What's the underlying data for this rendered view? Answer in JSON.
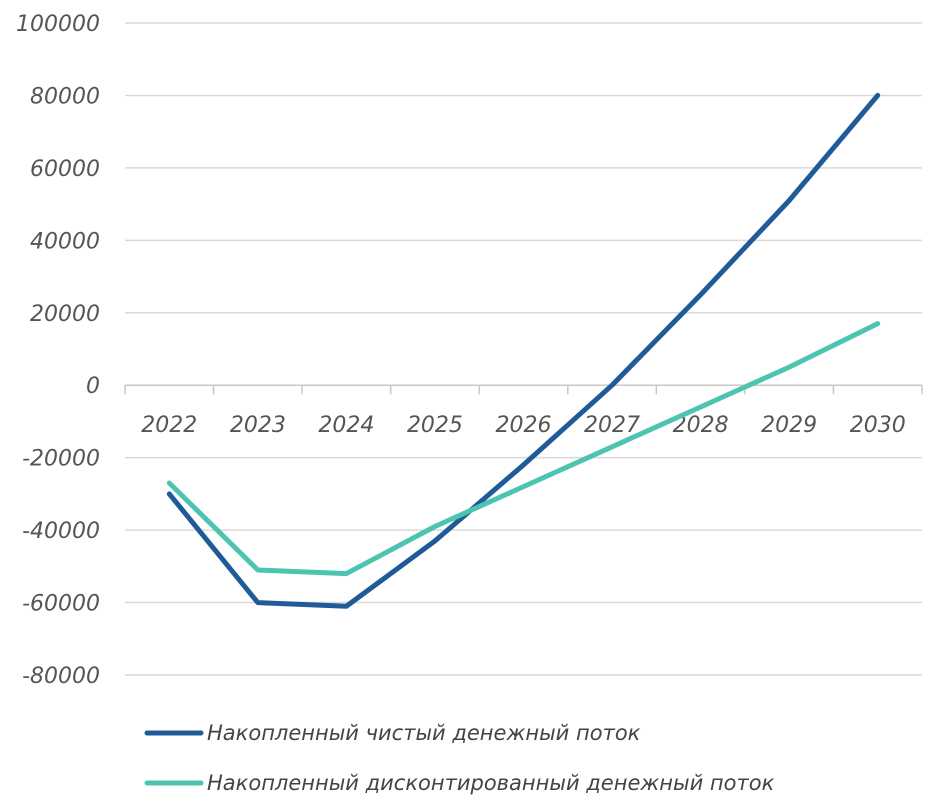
{
  "chart_data": {
    "type": "line",
    "categories": [
      "2022",
      "2023",
      "2024",
      "2025",
      "2026",
      "2027",
      "2028",
      "2029",
      "2030"
    ],
    "series": [
      {
        "name": "Накопленный чистый денежный поток",
        "color": "#1f5a99",
        "values": [
          -30000,
          -60000,
          -61000,
          -43000,
          -22000,
          0,
          25000,
          51000,
          80000
        ]
      },
      {
        "name": "Накопленный дисконтированный денежный поток",
        "color": "#4dc4b0",
        "values": [
          -27000,
          -51000,
          -52000,
          -39000,
          -28000,
          -17000,
          -6000,
          5000,
          17000
        ]
      }
    ],
    "y_ticks": [
      "100000",
      "80000",
      "60000",
      "40000",
      "20000",
      "0",
      "-20000",
      "-40000",
      "-60000",
      "-80000"
    ],
    "ylim": [
      -80000,
      100000
    ],
    "grid": true,
    "legend": "bottom"
  }
}
